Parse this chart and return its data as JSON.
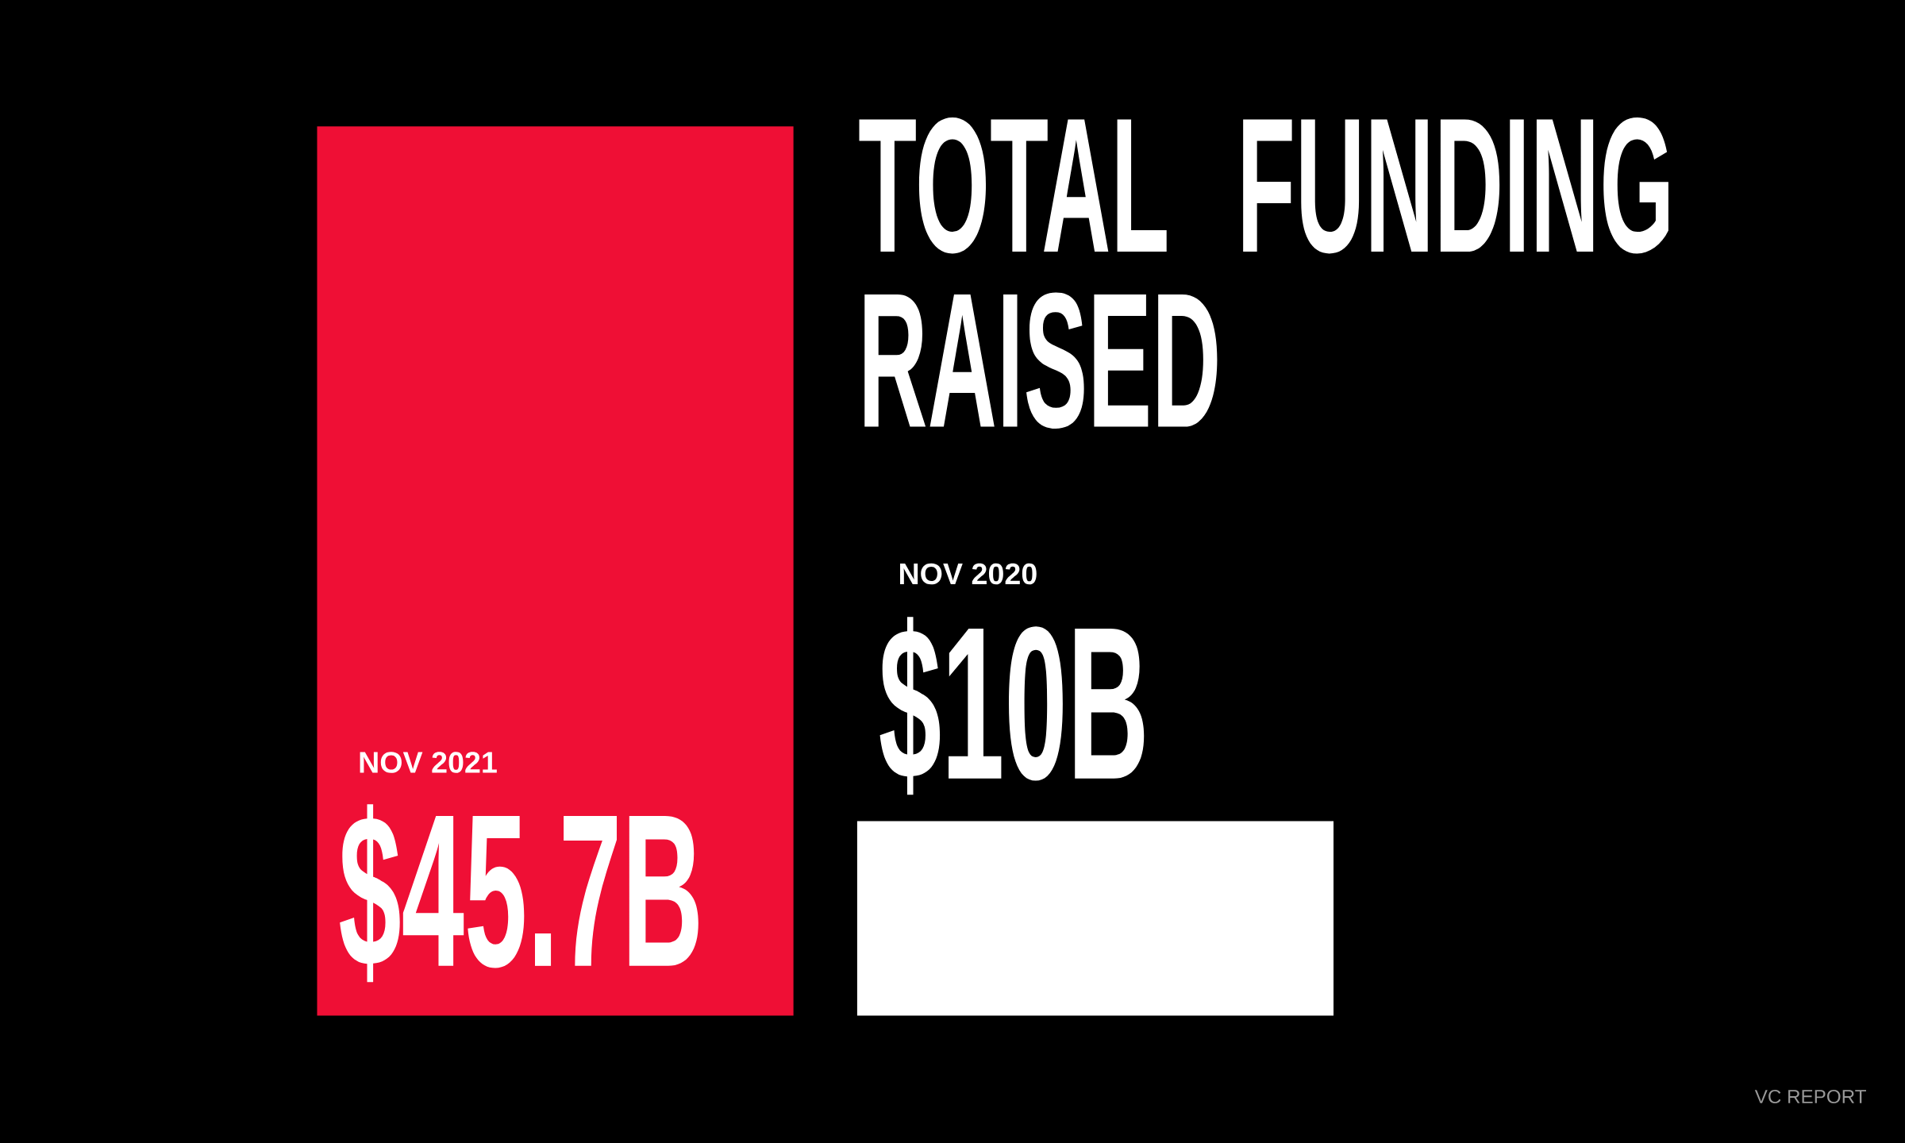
{
  "chart_data": {
    "type": "bar",
    "title": "TOTAL FUNDING RAISED",
    "categories": [
      "NOV 2021",
      "NOV 2020"
    ],
    "values": [
      45.7,
      10
    ],
    "colors": [
      "#ef0f35",
      "#ffffff"
    ],
    "value_labels": [
      "$45.7B",
      "$10B"
    ],
    "annotations": [
      "VC REPORT"
    ]
  }
}
